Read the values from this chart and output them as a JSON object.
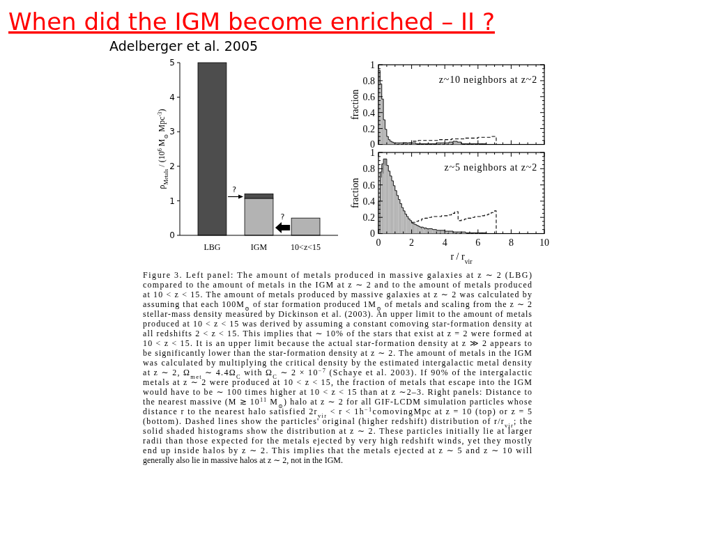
{
  "chart_data": [
    {
      "type": "bar",
      "title": "When did the IGM become enriched – II ?",
      "ylabel": "ρ$_{Metals}$ / (10$^{6}$ M$_{⊙}$ Mpc$^{-3}$)",
      "annotations": [
        "Adelberger et al. 2005",
        "?",
        "?"
      ],
      "categories": [
        "LBG",
        "IGM",
        "10<z<15"
      ],
      "stacked": true,
      "series": [
        {
          "colors": [
            "#4d4d4d",
            "#b3b3b3",
            "#b3b3b3"
          ],
          "values": [
            5,
            1.07,
            0.5
          ]
        },
        {
          "color": "#4d4d4d",
          "values": [
            null,
            0.13,
            null
          ]
        }
      ],
      "ylim": [
        0,
        5
      ],
      "yticks": [
        0,
        1,
        2,
        3,
        4,
        5
      ]
    },
    {
      "type": "histogram",
      "ylabel": "fraction",
      "annotations": [
        "z~10 neighbors at z~2"
      ],
      "xlim": [
        0,
        10
      ],
      "ylim": [
        0,
        1
      ],
      "tick_labels": "y",
      "xticks": [
        0,
        {
          "value": 0.5,
          "label": null
        },
        {
          "value": 1,
          "label": null
        },
        {
          "value": 1.5,
          "label": null
        },
        2,
        {
          "value": 2.5,
          "label": null
        },
        {
          "value": 3,
          "label": null
        },
        {
          "value": 3.5,
          "label": null
        },
        4,
        {
          "value": 4.5,
          "label": null
        },
        {
          "value": 5,
          "label": null
        },
        {
          "value": 5.5,
          "label": null
        },
        6,
        {
          "value": 6.5,
          "label": null
        },
        {
          "value": 7,
          "label": null
        },
        {
          "value": 7.5,
          "label": null
        },
        8,
        {
          "value": 8.5,
          "label": null
        },
        {
          "value": 9,
          "label": null
        },
        {
          "value": 9.5,
          "label": null
        },
        10
      ],
      "yticks": [
        0,
        {
          "value": 0.05,
          "label": null
        },
        {
          "value": 0.1,
          "label": null
        },
        {
          "value": 0.15,
          "label": null
        },
        0.2,
        {
          "value": 0.25,
          "label": null
        },
        {
          "value": 0.3,
          "label": null
        },
        {
          "value": 0.35,
          "label": null
        },
        0.4,
        {
          "value": 0.45,
          "label": null
        },
        {
          "value": 0.5,
          "label": null
        },
        {
          "value": 0.55,
          "label": null
        },
        0.6,
        {
          "value": 0.65,
          "label": null
        },
        {
          "value": 0.7,
          "label": null
        },
        {
          "value": 0.75,
          "label": null
        },
        0.8,
        {
          "value": 0.85,
          "label": null
        },
        {
          "value": 0.9,
          "label": null
        },
        {
          "value": 0.95,
          "label": null
        },
        1
      ],
      "bins": [
        0,
        0.1,
        0.2,
        0.3,
        0.4,
        0.5,
        0.6,
        0.7,
        0.8,
        0.9,
        1,
        1.25,
        1.5,
        1.75,
        2,
        2.25,
        2.5,
        2.75,
        3,
        3.25,
        3.5,
        3.75,
        4,
        4.25,
        4.5,
        4.75,
        5,
        5.25,
        5.5,
        5.75,
        6,
        6.25,
        6.5
      ],
      "series": [
        {
          "type": "histogram",
          "color": "#b3b3b3",
          "values": [
            0.93,
            0.76,
            0.57,
            0.31,
            0.19,
            0.1,
            0.06,
            0.04,
            0.03,
            0.02,
            0.02,
            0.02,
            0.02,
            0.02,
            0.02,
            0.01,
            0.01,
            0.01,
            0.01,
            0.01,
            0.02,
            0.02,
            0.02,
            0.03,
            0.04,
            0.03,
            0.01,
            0.01,
            0.01,
            0.01,
            0.01,
            0.01
          ]
        },
        {
          "type": "step",
          "color": "#000000",
          "line_style": "dashed",
          "x": [
            1.5,
            2,
            2.4,
            2.8,
            3.2,
            3.6,
            4,
            4.4,
            4.8,
            5.2,
            5.6,
            6,
            6.4,
            6.8,
            7.1
          ],
          "values": [
            0.02,
            0.04,
            0.05,
            0.05,
            0.05,
            0.06,
            0.06,
            0.07,
            0.07,
            0.08,
            0.08,
            0.09,
            0.09,
            0.1,
            0
          ]
        }
      ]
    },
    {
      "type": "histogram",
      "ylabel": "fraction",
      "xlabel": "r / r$_{vir}$",
      "annotations": [
        "z~5 neighbors at z~2"
      ],
      "xlim": [
        0,
        10
      ],
      "ylim": [
        0,
        1
      ],
      "xticks": [
        0,
        {
          "value": 0.5,
          "label": null
        },
        {
          "value": 1,
          "label": null
        },
        {
          "value": 1.5,
          "label": null
        },
        2,
        {
          "value": 2.5,
          "label": null
        },
        {
          "value": 3,
          "label": null
        },
        {
          "value": 3.5,
          "label": null
        },
        4,
        {
          "value": 4.5,
          "label": null
        },
        {
          "value": 5,
          "label": null
        },
        {
          "value": 5.5,
          "label": null
        },
        6,
        {
          "value": 6.5,
          "label": null
        },
        {
          "value": 7,
          "label": null
        },
        {
          "value": 7.5,
          "label": null
        },
        8,
        {
          "value": 8.5,
          "label": null
        },
        {
          "value": 9,
          "label": null
        },
        {
          "value": 9.5,
          "label": null
        },
        10
      ],
      "yticks": [
        0,
        {
          "value": 0.05,
          "label": null
        },
        {
          "value": 0.1,
          "label": null
        },
        {
          "value": 0.15,
          "label": null
        },
        0.2,
        {
          "value": 0.25,
          "label": null
        },
        {
          "value": 0.3,
          "label": null
        },
        {
          "value": 0.35,
          "label": null
        },
        0.4,
        {
          "value": 0.45,
          "label": null
        },
        {
          "value": 0.5,
          "label": null
        },
        {
          "value": 0.55,
          "label": null
        },
        0.6,
        {
          "value": 0.65,
          "label": null
        },
        {
          "value": 0.7,
          "label": null
        },
        {
          "value": 0.75,
          "label": null
        },
        0.8,
        {
          "value": 0.85,
          "label": null
        },
        {
          "value": 0.9,
          "label": null
        },
        {
          "value": 0.95,
          "label": null
        },
        1
      ],
      "bins": [
        0,
        0.1,
        0.2,
        0.3,
        0.4,
        0.5,
        0.6,
        0.7,
        0.8,
        0.9,
        1,
        1.1,
        1.2,
        1.3,
        1.4,
        1.5,
        1.6,
        1.7,
        1.8,
        1.9,
        2,
        2.1,
        2.2,
        2.3,
        2.4,
        2.5,
        2.6,
        2.7,
        2.8,
        2.9,
        3,
        3.25,
        3.5,
        3.75,
        4,
        4.25,
        4.5,
        4.75,
        5,
        5.25,
        5.5,
        5.75,
        6,
        6.25,
        6.5
      ],
      "series": [
        {
          "type": "histogram",
          "color": "#b3b3b3",
          "values": [
            0.4,
            0.76,
            0.86,
            0.92,
            0.92,
            0.84,
            0.77,
            0.71,
            0.65,
            0.59,
            0.53,
            0.47,
            0.42,
            0.37,
            0.32,
            0.28,
            0.24,
            0.21,
            0.18,
            0.16,
            0.13,
            0.12,
            0.11,
            0.1,
            0.09,
            0.08,
            0.08,
            0.07,
            0.07,
            0.06,
            0.06,
            0.05,
            0.04,
            0.04,
            0.03,
            0.03,
            0.02,
            0.02,
            0.02,
            0.01,
            0.01,
            0.01,
            0.01,
            0.01
          ]
        },
        {
          "type": "step",
          "color": "#000000",
          "line_style": "dashed",
          "x": [
            2,
            2.2,
            2.4,
            2.6,
            2.8,
            3,
            3.2,
            3.4,
            3.6,
            3.8,
            4,
            4.2,
            4.4,
            4.6,
            4.8,
            5,
            5.2,
            5.4,
            5.6,
            5.8,
            6,
            6.2,
            6.4,
            6.6,
            6.8,
            7,
            7.1
          ],
          "values": [
            0.14,
            0.15,
            0.16,
            0.18,
            0.19,
            0.2,
            0.21,
            0.21,
            0.21,
            0.22,
            0.22,
            0.23,
            0.25,
            0.27,
            0.16,
            0.17,
            0.18,
            0.19,
            0.2,
            0.21,
            0.21,
            0.22,
            0.23,
            0.24,
            0.26,
            0.28,
            0
          ]
        }
      ]
    },
    {
      "type": "other",
      "annotations": [
        "Figure 3. Left panel: The amount of metals produced in massive galaxies at z ∼ 2 (LBG)",
        "compared to the amount of metals in the IGM at z ∼ 2 and to the amount of metals produced",
        "at 10 < z < 15. The amount of metals produced by massive galaxies at z ∼ 2 was calculated by",
        "assuming that each 100M$_{⊙}$ of star formation produced 1M$_{⊙}$ of metals and scaling from the z ∼ 2",
        "stellar-mass density measured by Dickinson et al. (2003). An upper limit to the amount of metals",
        "produced at 10 < z < 15 was derived by assuming a constant comoving star-formation density at",
        "all redshifts 2 < z < 15. This implies that ∼ 10% of the stars that exist at z = 2 were formed at",
        "10 < z < 15. It is an upper limit because the actual star-formation density at z ≫ 2 appears to",
        "be significantly lower than the star-formation density at z ∼ 2. The amount of metals in the IGM",
        "was calculated by multiplying the critical density by the estimated intergalactic metal density",
        "at z ∼ 2, Ω$_{met}$ ∼ 4.4Ω$_{C}$ with Ω$_{C}$ ∼ 2 × 10$^{−7}$ (Schaye et al. 2003). If 90% of the intergalactic",
        "metals at z ∼ 2 were produced at 10 < z < 15, the fraction of metals that escape into the IGM",
        "would have to be ∼ 100 times higher at 10 < z < 15 than at z ∼2–3. Right panels: Distance to",
        "the nearest massive (M ≳ 10$^{11}$ M$_{⊙}$) halo at z ∼ 2 for all GIF-LCDM simulation particles whose",
        "distance r to the nearest halo satisfied 2r$_{vir}$ < r < 1h$^{−1}$comovingMpc at z = 10 (top) or z = 5",
        "(bottom). Dashed lines show the particles' original (higher redshift) distribution of r/r$_{vir}$; the",
        "solid shaded histograms show the distribution at z ∼ 2. These particles initially lie at larger",
        "radii than those expected for the metals ejected by very high redshift winds, yet they mostly",
        "end up inside halos by z ∼ 2. This implies that the metals ejected at z ∼ 5 and z ∼ 10 will",
        "generally also lie in massive halos at z ∼ 2, not in the IGM."
      ]
    }
  ]
}
